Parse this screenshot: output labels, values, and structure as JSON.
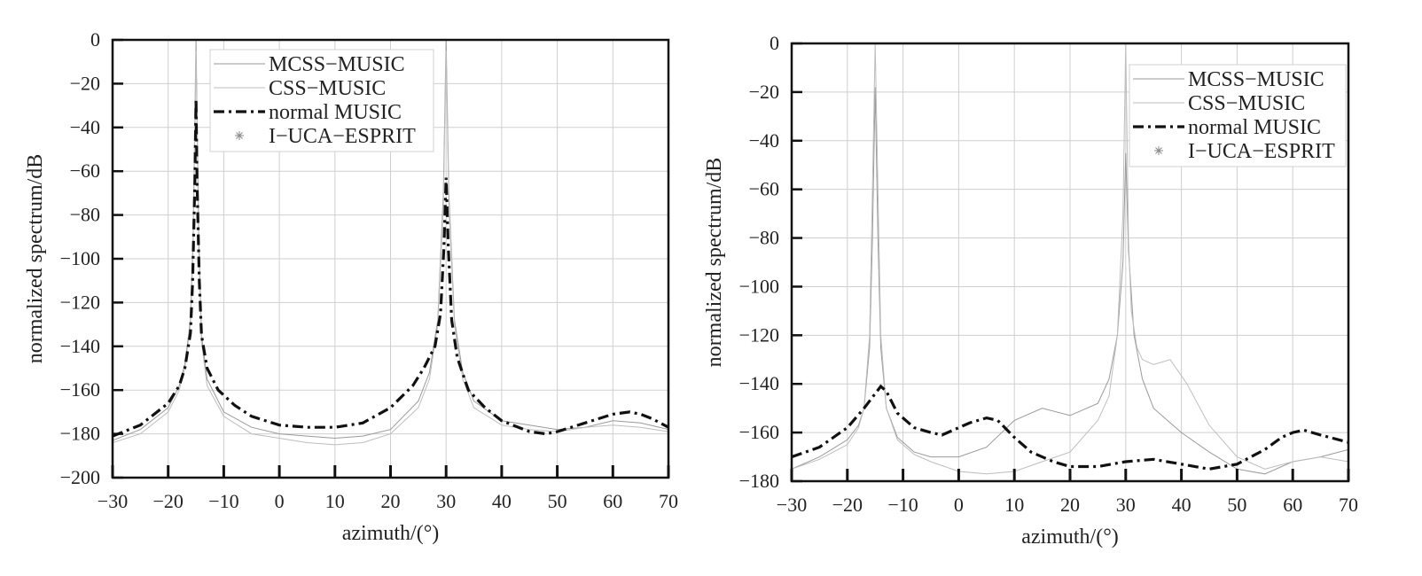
{
  "chart_data": [
    {
      "type": "line",
      "xlabel": "azimuth/(°)",
      "ylabel": "normalized spectrum/dB",
      "xlim": [
        -30,
        70
      ],
      "ylim": [
        -200,
        0
      ],
      "x_ticks": [
        -30,
        -20,
        -10,
        0,
        10,
        20,
        30,
        40,
        50,
        60,
        70
      ],
      "y_ticks": [
        0,
        -20,
        -40,
        -60,
        -80,
        -100,
        -120,
        -140,
        -160,
        -180,
        -200
      ],
      "x_tick_labels": [
        "−30",
        "−20",
        "−10",
        "0",
        "10",
        "20",
        "30",
        "40",
        "50",
        "60",
        "70"
      ],
      "y_tick_labels": [
        "0",
        "−20",
        "−40",
        "−60",
        "−80",
        "−100",
        "−120",
        "−140",
        "−160",
        "−180",
        "−200"
      ],
      "grid": true,
      "legend_position": "top-center",
      "series": [
        {
          "name": "MCSS−MUSIC",
          "style": "thin-solid",
          "color": "#9a9a9a",
          "x": [
            -30,
            -25,
            -20,
            -18,
            -17,
            -16,
            -15.5,
            -15,
            -14.5,
            -14,
            -13,
            -10,
            -5,
            0,
            5,
            10,
            15,
            20,
            25,
            27,
            28.5,
            29.5,
            30,
            30.5,
            31.5,
            33,
            35,
            40,
            45,
            50,
            55,
            60,
            65,
            70
          ],
          "y": [
            -183,
            -178,
            -168,
            -158,
            -148,
            -128,
            -90,
            0,
            -90,
            -135,
            -155,
            -170,
            -177,
            -180,
            -181,
            -182,
            -181,
            -178,
            -165,
            -152,
            -128,
            -70,
            0,
            -70,
            -128,
            -152,
            -165,
            -174,
            -176,
            -178,
            -177,
            -174,
            -175,
            -178
          ]
        },
        {
          "name": "CSS−MUSIC",
          "style": "thin-solid",
          "color": "#bdbdbd",
          "x": [
            -30,
            -25,
            -20,
            -18,
            -17,
            -16,
            -15.5,
            -15,
            -14.5,
            -14,
            -13,
            -10,
            -5,
            0,
            5,
            10,
            15,
            20,
            25,
            27,
            28.5,
            29.5,
            30,
            30.5,
            31.5,
            33,
            35,
            40,
            45,
            50,
            55,
            60,
            65,
            70
          ],
          "y": [
            -184,
            -180,
            -170,
            -160,
            -150,
            -130,
            -95,
            -5,
            -95,
            -138,
            -158,
            -172,
            -180,
            -182,
            -184,
            -185,
            -184,
            -180,
            -168,
            -155,
            -130,
            -75,
            -5,
            -75,
            -130,
            -155,
            -168,
            -176,
            -178,
            -179,
            -177,
            -176,
            -177,
            -179
          ]
        },
        {
          "name": "normal MUSIC",
          "style": "dash-dot",
          "color": "#111111",
          "x": [
            -30,
            -25,
            -20,
            -18,
            -17,
            -16,
            -15.6,
            -15.2,
            -15,
            -14.8,
            -14.4,
            -14,
            -13,
            -11,
            -8,
            -5,
            0,
            5,
            10,
            15,
            20,
            24,
            26,
            28,
            29,
            29.6,
            30,
            30.4,
            31,
            32,
            34,
            37,
            40,
            45,
            48,
            50,
            55,
            60,
            63,
            65,
            67,
            70
          ],
          "y": [
            -181,
            -176,
            -166,
            -158,
            -150,
            -134,
            -110,
            -65,
            -27,
            -65,
            -110,
            -135,
            -150,
            -160,
            -167,
            -172,
            -176,
            -177,
            -177,
            -175,
            -168,
            -158,
            -150,
            -140,
            -125,
            -95,
            -63,
            -95,
            -128,
            -145,
            -160,
            -168,
            -174,
            -179,
            -180,
            -179,
            -175,
            -171,
            -170,
            -171,
            -173,
            -177
          ]
        },
        {
          "name": "I−UCA−ESPRIT",
          "style": "marker-star",
          "color": "#888888",
          "x": [],
          "y": []
        }
      ]
    },
    {
      "type": "line",
      "xlabel": "azimuth/(°)",
      "ylabel": "normalized spectrum/dB",
      "xlim": [
        -30,
        70
      ],
      "ylim": [
        -180,
        0
      ],
      "x_ticks": [
        -30,
        -20,
        -10,
        0,
        10,
        20,
        30,
        40,
        50,
        60,
        70
      ],
      "y_ticks": [
        0,
        -20,
        -40,
        -60,
        -80,
        -100,
        -120,
        -140,
        -160,
        -180
      ],
      "x_tick_labels": [
        "−30",
        "−20",
        "−10",
        "0",
        "10",
        "20",
        "30",
        "40",
        "50",
        "60",
        "70"
      ],
      "y_tick_labels": [
        "0",
        "−20",
        "−40",
        "−60",
        "−80",
        "−100",
        "−120",
        "−140",
        "−160",
        "−180"
      ],
      "grid": true,
      "legend_position": "top-right",
      "series": [
        {
          "name": "MCSS−MUSIC",
          "style": "thin-solid",
          "color": "#9a9a9a",
          "x": [
            -30,
            -25,
            -20,
            -18,
            -17,
            -16,
            -15.5,
            -15,
            -14.5,
            -14,
            -13,
            -11,
            -8,
            -5,
            0,
            5,
            10,
            15,
            20,
            25,
            27,
            28.5,
            29.5,
            30,
            30.5,
            31.5,
            33,
            35,
            40,
            45,
            50,
            55,
            60,
            65,
            70
          ],
          "y": [
            -175,
            -170,
            -163,
            -157,
            -150,
            -125,
            -80,
            -18,
            -80,
            -125,
            -150,
            -162,
            -168,
            -170,
            -170,
            -166,
            -155,
            -150,
            -153,
            -148,
            -138,
            -120,
            -90,
            -45,
            -85,
            -120,
            -138,
            -150,
            -160,
            -168,
            -175,
            -177,
            -172,
            -170,
            -167
          ]
        },
        {
          "name": "CSS−MUSIC",
          "style": "thin-solid",
          "color": "#bdbdbd",
          "x": [
            -30,
            -25,
            -20,
            -18,
            -17,
            -16,
            -15.5,
            -15,
            -14.5,
            -14,
            -13,
            -11,
            -8,
            -5,
            0,
            5,
            10,
            15,
            20,
            25,
            27,
            28.5,
            29.5,
            30,
            30.5,
            31,
            32,
            33,
            35,
            38,
            41,
            45,
            50,
            55,
            60,
            65,
            70
          ],
          "y": [
            -175,
            -171,
            -165,
            -158,
            -150,
            -120,
            -60,
            0,
            -60,
            -120,
            -150,
            -163,
            -169,
            -172,
            -176,
            -177,
            -176,
            -172,
            -168,
            -155,
            -145,
            -120,
            -70,
            0,
            -80,
            -110,
            -125,
            -130,
            -132,
            -130,
            -140,
            -157,
            -170,
            -175,
            -172,
            -170,
            -172
          ]
        },
        {
          "name": "normal MUSIC",
          "style": "dash-dot",
          "color": "#111111",
          "x": [
            -30,
            -25,
            -20,
            -17,
            -15,
            -14,
            -13,
            -11,
            -8,
            -5,
            -3,
            -1,
            2,
            5,
            7,
            10,
            13,
            17,
            20,
            25,
            30,
            35,
            40,
            45,
            50,
            55,
            58,
            60,
            62,
            65,
            70
          ],
          "y": [
            -170,
            -166,
            -158,
            -150,
            -144,
            -141,
            -143,
            -152,
            -158,
            -160,
            -161,
            -159,
            -156,
            -154,
            -155,
            -162,
            -168,
            -172,
            -174,
            -174,
            -172,
            -171,
            -173,
            -175,
            -173,
            -167,
            -162,
            -160,
            -159,
            -161,
            -164
          ]
        },
        {
          "name": "I−UCA−ESPRIT",
          "style": "marker-star",
          "color": "#888888",
          "x": [],
          "y": []
        }
      ]
    }
  ]
}
